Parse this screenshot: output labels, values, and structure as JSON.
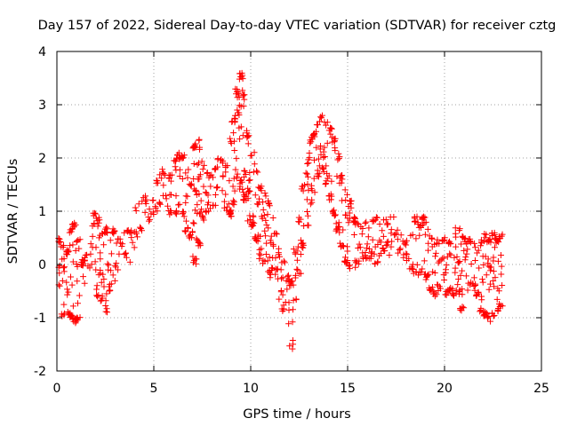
{
  "chart_data": {
    "type": "scatter",
    "title": "Day 157 of 2022, Sidereal Day-to-day VTEC variation (SDTVAR) for receiver cztg",
    "xlabel": "GPS time / hours",
    "ylabel": "SDTVAR / TECUs",
    "xlim": [
      0,
      25
    ],
    "ylim": [
      -2,
      4
    ],
    "xticks": [
      0,
      5,
      10,
      15,
      20,
      25
    ],
    "yticks": [
      -2,
      -1,
      0,
      1,
      2,
      3,
      4
    ],
    "xtick_labels": [
      "0",
      "5",
      "10",
      "15",
      "20",
      "25"
    ],
    "ytick_labels": [
      "-2",
      "-1",
      "0",
      "1",
      "2",
      "3",
      "4"
    ],
    "grid": true,
    "marker": "plus",
    "series": [
      {
        "name": "SDTVAR",
        "color": "#ff0000",
        "envelope": {
          "x": [
            0.1,
            0.3,
            0.5,
            0.7,
            0.9,
            1.1,
            1.3,
            1.5,
            1.7,
            1.9,
            2.1,
            2.3,
            2.5,
            2.7,
            2.9,
            3.1,
            3.3,
            3.5,
            3.7,
            3.9,
            4.1,
            4.3,
            4.5,
            4.7,
            4.9,
            5.1,
            5.3,
            5.5,
            5.7,
            5.9,
            6.1,
            6.3,
            6.5,
            6.7,
            6.9,
            7.1,
            7.3,
            7.5,
            7.7,
            7.9,
            8.1,
            8.3,
            8.5,
            8.7,
            8.9,
            9.1,
            9.3,
            9.5,
            9.7,
            9.9,
            10.1,
            10.3,
            10.5,
            10.7,
            10.9,
            11.1,
            11.3,
            11.5,
            11.7,
            11.9,
            12.1,
            12.3,
            12.5,
            12.7,
            12.9,
            13.1,
            13.3,
            13.5,
            13.7,
            13.9,
            14.1,
            14.3,
            14.5,
            14.7,
            14.9,
            15.1,
            15.3,
            15.5,
            15.7,
            15.9,
            16.1,
            16.3,
            16.5,
            16.7,
            16.9,
            17.1,
            17.3,
            17.5,
            17.7,
            17.9,
            18.1,
            18.3,
            18.5,
            18.7,
            18.9,
            19.1,
            19.3,
            19.5,
            19.7,
            19.9,
            20.1,
            20.3,
            20.5,
            20.7,
            20.9,
            21.1,
            21.3,
            21.5,
            21.7,
            21.9,
            22.1,
            22.3,
            22.5,
            22.7,
            22.9
          ],
          "high": [
            0.5,
            0.4,
            0.3,
            0.7,
            0.8,
            0.5,
            0.1,
            0.2,
            0.4,
            1.0,
            0.9,
            0.6,
            0.7,
            0.6,
            0.7,
            0.5,
            0.6,
            0.6,
            0.7,
            0.7,
            1.1,
            1.2,
            1.3,
            1.3,
            1.3,
            1.6,
            1.7,
            1.8,
            1.7,
            1.8,
            2.0,
            2.1,
            2.1,
            1.8,
            1.6,
            2.3,
            2.4,
            2.0,
            1.8,
            1.7,
            1.9,
            2.0,
            2.0,
            1.9,
            2.4,
            2.8,
            3.3,
            3.6,
            3.2,
            2.5,
            2.2,
            1.8,
            1.5,
            1.4,
            1.2,
            0.9,
            0.6,
            0.3,
            0.1,
            -0.2,
            -0.3,
            0.3,
            0.9,
            1.5,
            2.0,
            2.4,
            2.5,
            2.7,
            2.8,
            2.7,
            2.6,
            2.4,
            2.1,
            1.7,
            1.5,
            1.2,
            0.9,
            0.8,
            0.8,
            0.8,
            0.8,
            0.9,
            0.9,
            0.8,
            0.9,
            0.8,
            0.9,
            0.7,
            0.7,
            0.5,
            0.6,
            0.6,
            0.9,
            0.8,
            0.9,
            0.8,
            0.6,
            0.4,
            0.5,
            0.5,
            0.6,
            0.5,
            0.7,
            0.7,
            0.6,
            0.5,
            0.5,
            0.4,
            0.3,
            0.5,
            0.6,
            0.5,
            0.6,
            0.5,
            0.6
          ],
          "low": [
            -0.5,
            -1.0,
            -0.9,
            -1.0,
            -1.1,
            -1.1,
            -1.0,
            -0.4,
            -0.1,
            0.0,
            -0.6,
            -0.7,
            -0.9,
            -0.5,
            -0.4,
            -0.2,
            0.1,
            0.1,
            0.0,
            0.3,
            0.5,
            0.6,
            0.8,
            0.8,
            0.9,
            1.0,
            1.1,
            1.2,
            1.0,
            0.9,
            0.9,
            1.1,
            0.9,
            0.6,
            0.5,
            0.0,
            0.3,
            0.8,
            0.9,
            1.0,
            1.1,
            1.4,
            1.3,
            1.0,
            0.9,
            1.1,
            1.6,
            1.4,
            1.2,
            0.8,
            0.7,
            0.4,
            0.1,
            0.0,
            -0.2,
            -0.3,
            -0.2,
            -0.7,
            -0.9,
            -1.2,
            -1.6,
            -0.7,
            -0.2,
            0.3,
            0.7,
            1.1,
            1.3,
            1.6,
            1.7,
            1.5,
            1.2,
            0.9,
            0.6,
            0.3,
            0.0,
            -0.1,
            -0.1,
            0.0,
            0.1,
            0.1,
            0.1,
            0.1,
            0.0,
            0.1,
            0.2,
            0.1,
            0.3,
            0.3,
            0.2,
            0.1,
            0.0,
            -0.1,
            -0.2,
            -0.2,
            -0.3,
            -0.3,
            -0.5,
            -0.6,
            -0.5,
            -0.4,
            -0.6,
            -0.5,
            -0.6,
            -0.6,
            -0.9,
            -0.6,
            -0.4,
            -0.5,
            -0.6,
            -0.9,
            -1.0,
            -1.1,
            -1.0,
            -0.9,
            -0.8
          ]
        }
      }
    ]
  }
}
